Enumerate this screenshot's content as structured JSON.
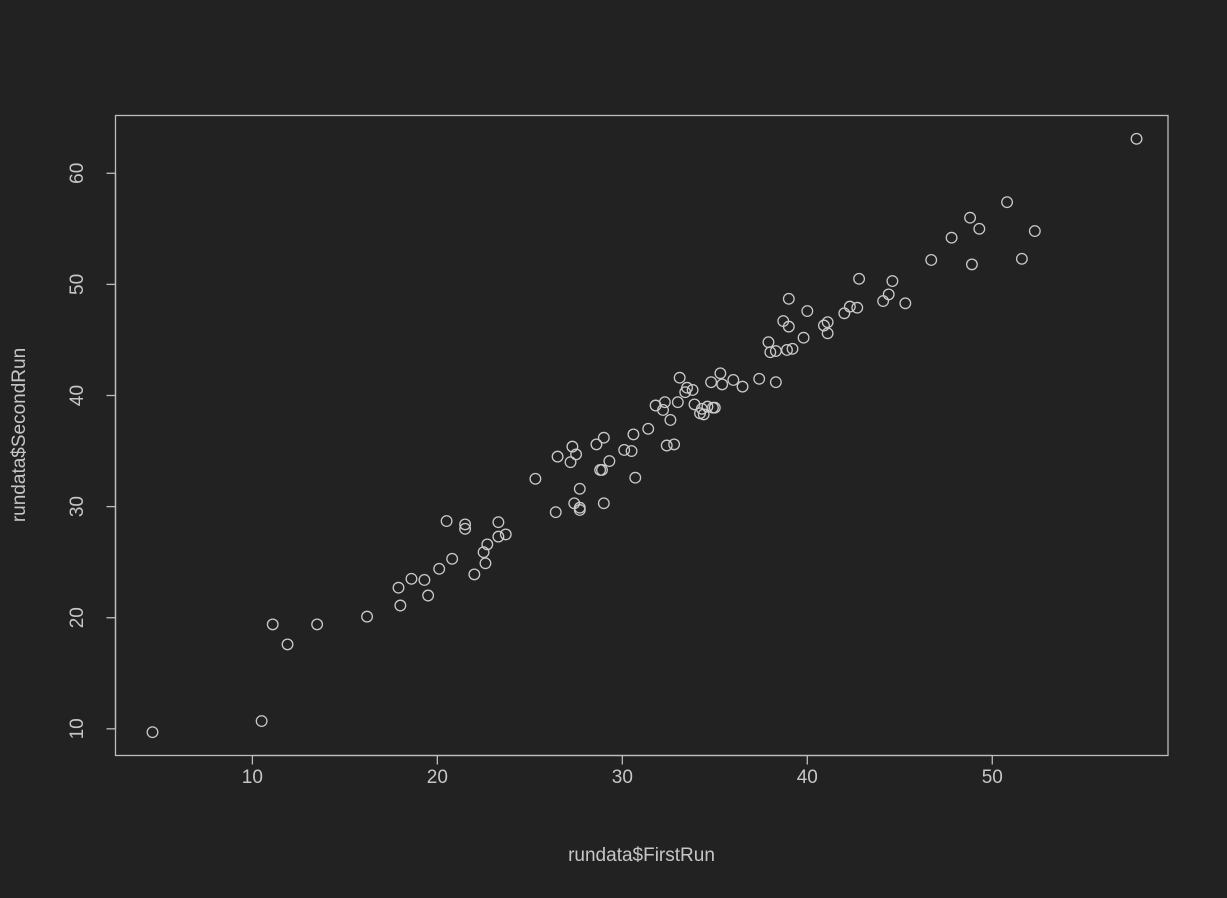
{
  "chart_data": {
    "type": "scatter",
    "title": "",
    "xlabel": "rundata$FirstRun",
    "ylabel": "rundata$SecondRun",
    "xlim": [
      2.6,
      59.5
    ],
    "ylim": [
      7.6,
      65.2
    ],
    "xticks": [
      10,
      20,
      30,
      40,
      50
    ],
    "yticks": [
      10,
      20,
      30,
      40,
      50,
      60
    ],
    "grid": false,
    "legend": "none",
    "colors": {
      "background": "#222222",
      "axes": "#bdbdbd",
      "points": "#c9c9c9",
      "text": "#c6c6c6"
    },
    "points": [
      [
        4.6,
        9.7
      ],
      [
        10.5,
        10.7
      ],
      [
        11.1,
        19.4
      ],
      [
        11.9,
        17.6
      ],
      [
        13.5,
        19.4
      ],
      [
        16.2,
        20.1
      ],
      [
        17.9,
        22.7
      ],
      [
        18.0,
        21.1
      ],
      [
        18.6,
        23.5
      ],
      [
        19.3,
        23.4
      ],
      [
        19.5,
        22.0
      ],
      [
        20.1,
        24.4
      ],
      [
        20.5,
        28.7
      ],
      [
        20.8,
        25.3
      ],
      [
        21.5,
        28.0
      ],
      [
        21.5,
        28.4
      ],
      [
        22.0,
        23.9
      ],
      [
        22.5,
        25.9
      ],
      [
        22.6,
        24.9
      ],
      [
        22.7,
        26.6
      ],
      [
        23.3,
        28.6
      ],
      [
        23.3,
        27.3
      ],
      [
        23.7,
        27.5
      ],
      [
        25.3,
        32.5
      ],
      [
        26.4,
        29.5
      ],
      [
        26.5,
        34.5
      ],
      [
        27.2,
        34.0
      ],
      [
        27.3,
        35.4
      ],
      [
        27.4,
        30.3
      ],
      [
        27.5,
        34.7
      ],
      [
        27.7,
        29.7
      ],
      [
        27.7,
        29.9
      ],
      [
        27.7,
        31.6
      ],
      [
        28.6,
        35.6
      ],
      [
        28.8,
        33.3
      ],
      [
        28.9,
        33.3
      ],
      [
        29.0,
        36.2
      ],
      [
        29.0,
        30.3
      ],
      [
        29.3,
        34.1
      ],
      [
        30.1,
        35.1
      ],
      [
        30.5,
        35.0
      ],
      [
        30.6,
        36.5
      ],
      [
        30.7,
        32.6
      ],
      [
        31.4,
        37.0
      ],
      [
        31.8,
        39.1
      ],
      [
        32.2,
        38.7
      ],
      [
        32.3,
        39.4
      ],
      [
        32.4,
        35.5
      ],
      [
        32.6,
        37.8
      ],
      [
        32.8,
        35.6
      ],
      [
        33.0,
        39.4
      ],
      [
        33.1,
        41.6
      ],
      [
        33.4,
        40.3
      ],
      [
        33.5,
        40.7
      ],
      [
        33.8,
        40.5
      ],
      [
        33.9,
        39.2
      ],
      [
        34.2,
        38.4
      ],
      [
        34.3,
        38.8
      ],
      [
        34.4,
        38.3
      ],
      [
        34.6,
        39.0
      ],
      [
        34.8,
        41.2
      ],
      [
        34.9,
        38.9
      ],
      [
        35.0,
        38.9
      ],
      [
        35.3,
        42.0
      ],
      [
        35.4,
        41.0
      ],
      [
        36.0,
        41.4
      ],
      [
        36.5,
        40.8
      ],
      [
        37.4,
        41.5
      ],
      [
        37.9,
        44.8
      ],
      [
        38.0,
        43.9
      ],
      [
        38.3,
        44.0
      ],
      [
        38.3,
        41.2
      ],
      [
        38.7,
        46.7
      ],
      [
        38.9,
        44.1
      ],
      [
        39.0,
        46.2
      ],
      [
        39.0,
        48.7
      ],
      [
        39.2,
        44.2
      ],
      [
        39.8,
        45.2
      ],
      [
        40.0,
        47.6
      ],
      [
        40.9,
        46.3
      ],
      [
        41.1,
        45.6
      ],
      [
        41.1,
        46.6
      ],
      [
        42.0,
        47.4
      ],
      [
        42.3,
        48.0
      ],
      [
        42.7,
        47.9
      ],
      [
        42.8,
        50.5
      ],
      [
        44.1,
        48.5
      ],
      [
        44.4,
        49.1
      ],
      [
        44.6,
        50.3
      ],
      [
        45.3,
        48.3
      ],
      [
        46.7,
        52.2
      ],
      [
        47.8,
        54.2
      ],
      [
        48.8,
        56.0
      ],
      [
        48.9,
        51.8
      ],
      [
        49.3,
        55.0
      ],
      [
        50.8,
        57.4
      ],
      [
        51.6,
        52.3
      ],
      [
        52.3,
        54.8
      ],
      [
        57.8,
        63.1
      ]
    ]
  }
}
